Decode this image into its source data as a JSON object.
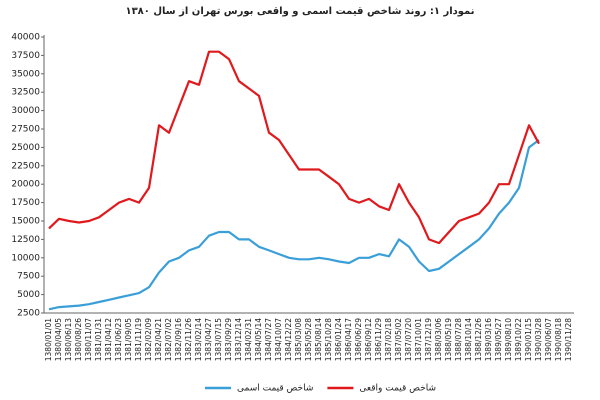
{
  "chart_data": {
    "type": "line",
    "title": "نمودار ۱: روند شاخص قیمت اسمی و واقعی بورس تهران از سال ۱۳۸۰",
    "categories": [
      "1380/01/01",
      "1380/04/05",
      "1380/06/13",
      "1380/08/26",
      "1380/11/07",
      "1381/01/31",
      "1381/04/12",
      "1381/06/23",
      "1381/09/05",
      "1381/11/19",
      "1382/02/09",
      "1382/04/21",
      "1382/07/02",
      "1382/09/16",
      "1382/11/26",
      "1383/02/14",
      "1383/04/27",
      "1383/07/15",
      "1383/09/29",
      "1383/12/14",
      "1384/02/31",
      "1384/05/14",
      "1384/07/27",
      "1384/10/07",
      "1384/12/22",
      "1385/03/08",
      "1385/05/28",
      "1385/08/14",
      "1385/10/28",
      "1386/01/24",
      "1386/04/17",
      "1386/06/29",
      "1386/09/12",
      "1386/11/29",
      "1387/02/18",
      "1387/05/02",
      "1387/07/20",
      "1387/10/01",
      "1387/12/19",
      "1388/03/06",
      "1388/05/19",
      "1388/07/28",
      "1388/10/14",
      "1388/12/26",
      "1389/03/16",
      "1389/05/27",
      "1389/08/10",
      "1389/10/22",
      "1390/01/15",
      "1390/03/28",
      "1390/06/07",
      "1390/08/18",
      "1390/11/28"
    ],
    "series": [
      {
        "name": "شاخص قیمت اسمی",
        "color": "#3a9fd8",
        "values": [
          3000,
          3300,
          3400,
          3500,
          3700,
          4000,
          4300,
          4600,
          4900,
          5200,
          6000,
          8000,
          9500,
          10000,
          11000,
          11500,
          13000,
          13500,
          13500,
          12500,
          12500,
          11500,
          11000,
          10500,
          10000,
          9800,
          9800,
          10000,
          9800,
          9500,
          9300,
          10000,
          10000,
          10500,
          10200,
          12500,
          11500,
          9500,
          8200,
          8500,
          9500,
          10500,
          11500,
          12500,
          14000,
          16000,
          17500,
          19500,
          25000,
          26000,
          null,
          null,
          null
        ]
      },
      {
        "name": "شاخص قیمت واقعی",
        "color": "#e0191d",
        "values": [
          14000,
          15300,
          15000,
          14800,
          15000,
          15500,
          16500,
          17500,
          18000,
          17500,
          19500,
          28000,
          27000,
          30500,
          34000,
          33500,
          38000,
          38000,
          37000,
          34000,
          33000,
          32000,
          27000,
          26000,
          24000,
          22000,
          22000,
          22000,
          21000,
          20000,
          18000,
          17500,
          18000,
          17000,
          16500,
          20000,
          17500,
          15500,
          12500,
          12000,
          13500,
          15000,
          15500,
          16000,
          17500,
          20000,
          20000,
          24000,
          28000,
          25500,
          null,
          null,
          null
        ]
      }
    ],
    "ylim": [
      2500,
      40000
    ],
    "yticks": [
      2500,
      5000,
      7500,
      10000,
      12500,
      15000,
      17500,
      20000,
      22500,
      25000,
      27500,
      30000,
      32500,
      35000,
      37500,
      40000
    ],
    "grid": false,
    "legend": "bottom"
  }
}
